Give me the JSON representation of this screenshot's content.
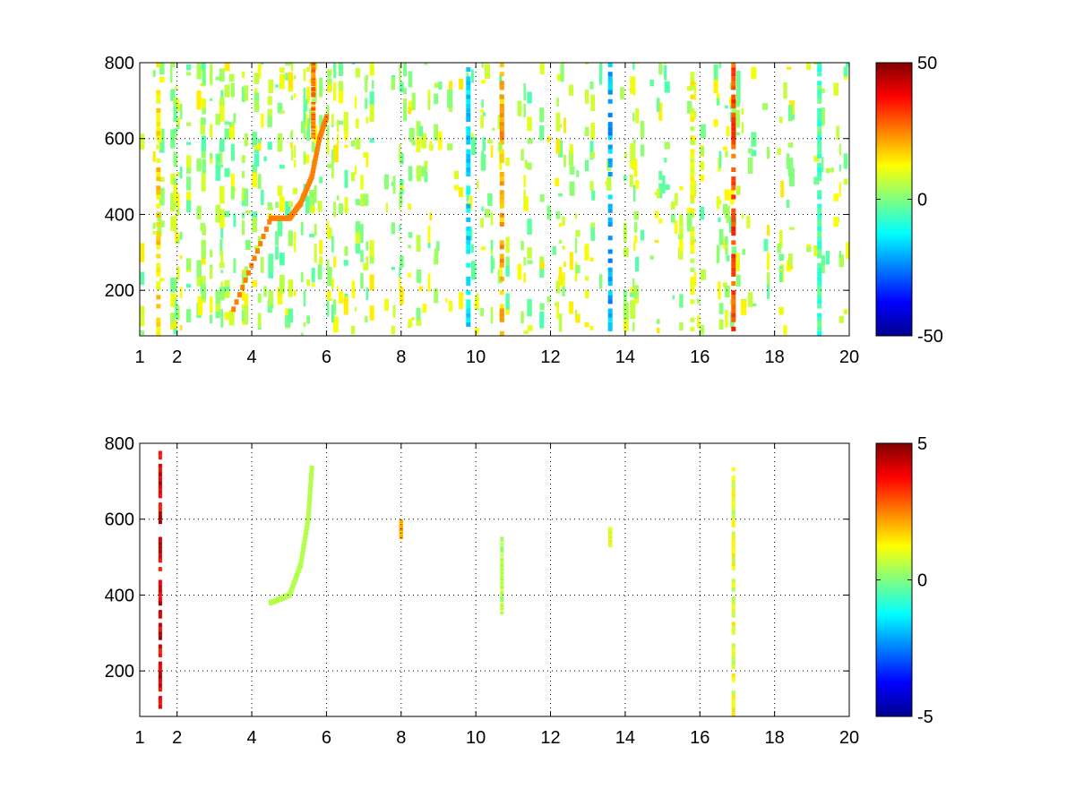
{
  "chart_data": [
    {
      "type": "heatmap",
      "title": "",
      "xlabel": "",
      "ylabel": "",
      "xlim": [
        1,
        20
      ],
      "ylim": [
        80,
        800
      ],
      "x_ticks": [
        1,
        2,
        4,
        6,
        8,
        10,
        12,
        14,
        16,
        18,
        20
      ],
      "y_ticks": [
        200,
        400,
        600,
        800
      ],
      "grid": true,
      "colormap": "jet",
      "clim": [
        -50,
        50
      ],
      "colorbar_ticks": [
        -50,
        0,
        50
      ],
      "features": {
        "vertical_bands": [
          {
            "x": 1.5,
            "value": 15
          },
          {
            "x": 5.65,
            "value": 25,
            "y_range": [
              600,
              800
            ]
          },
          {
            "x": 9.8,
            "value": -15
          },
          {
            "x": 10.7,
            "value": 20
          },
          {
            "x": 13.6,
            "value": -20
          },
          {
            "x": 15.8,
            "value": 10
          },
          {
            "x": 16.9,
            "value": 30
          },
          {
            "x": 19.2,
            "value": -5
          }
        ],
        "ridge": [
          {
            "x": 3.5,
            "y": 150
          },
          {
            "x": 4.5,
            "y": 390
          },
          {
            "x": 5.0,
            "y": 390
          },
          {
            "x": 5.3,
            "y": 430
          },
          {
            "x": 5.6,
            "y": 500
          },
          {
            "x": 5.8,
            "y": 600
          },
          {
            "x": 6.0,
            "y": 660
          }
        ]
      }
    },
    {
      "type": "heatmap",
      "title": "",
      "xlabel": "",
      "ylabel": "",
      "xlim": [
        1,
        20
      ],
      "ylim": [
        80,
        800
      ],
      "x_ticks": [
        1,
        2,
        4,
        6,
        8,
        10,
        12,
        14,
        16,
        18,
        20
      ],
      "y_ticks": [
        200,
        400,
        600,
        800
      ],
      "grid": true,
      "colormap": "jet",
      "clim": [
        -5,
        5
      ],
      "colorbar_ticks": [
        -5,
        0,
        5
      ],
      "features": {
        "vertical_bands": [
          {
            "x": 1.55,
            "value": 4,
            "y_range": [
              100,
              780
            ]
          },
          {
            "x": 16.9,
            "value": 1,
            "y_range": [
              80,
              760
            ]
          },
          {
            "x": 10.7,
            "value": 0.5,
            "y_range": [
              350,
              550
            ]
          },
          {
            "x": 13.6,
            "value": 1,
            "y_range": [
              530,
              580
            ]
          },
          {
            "x": 8.0,
            "value": 2,
            "y_range": [
              550,
              600
            ]
          }
        ],
        "ridge": [
          {
            "x": 4.5,
            "y": 380
          },
          {
            "x": 5.0,
            "y": 400
          },
          {
            "x": 5.3,
            "y": 480
          },
          {
            "x": 5.5,
            "y": 600
          },
          {
            "x": 5.6,
            "y": 740
          }
        ]
      }
    }
  ]
}
